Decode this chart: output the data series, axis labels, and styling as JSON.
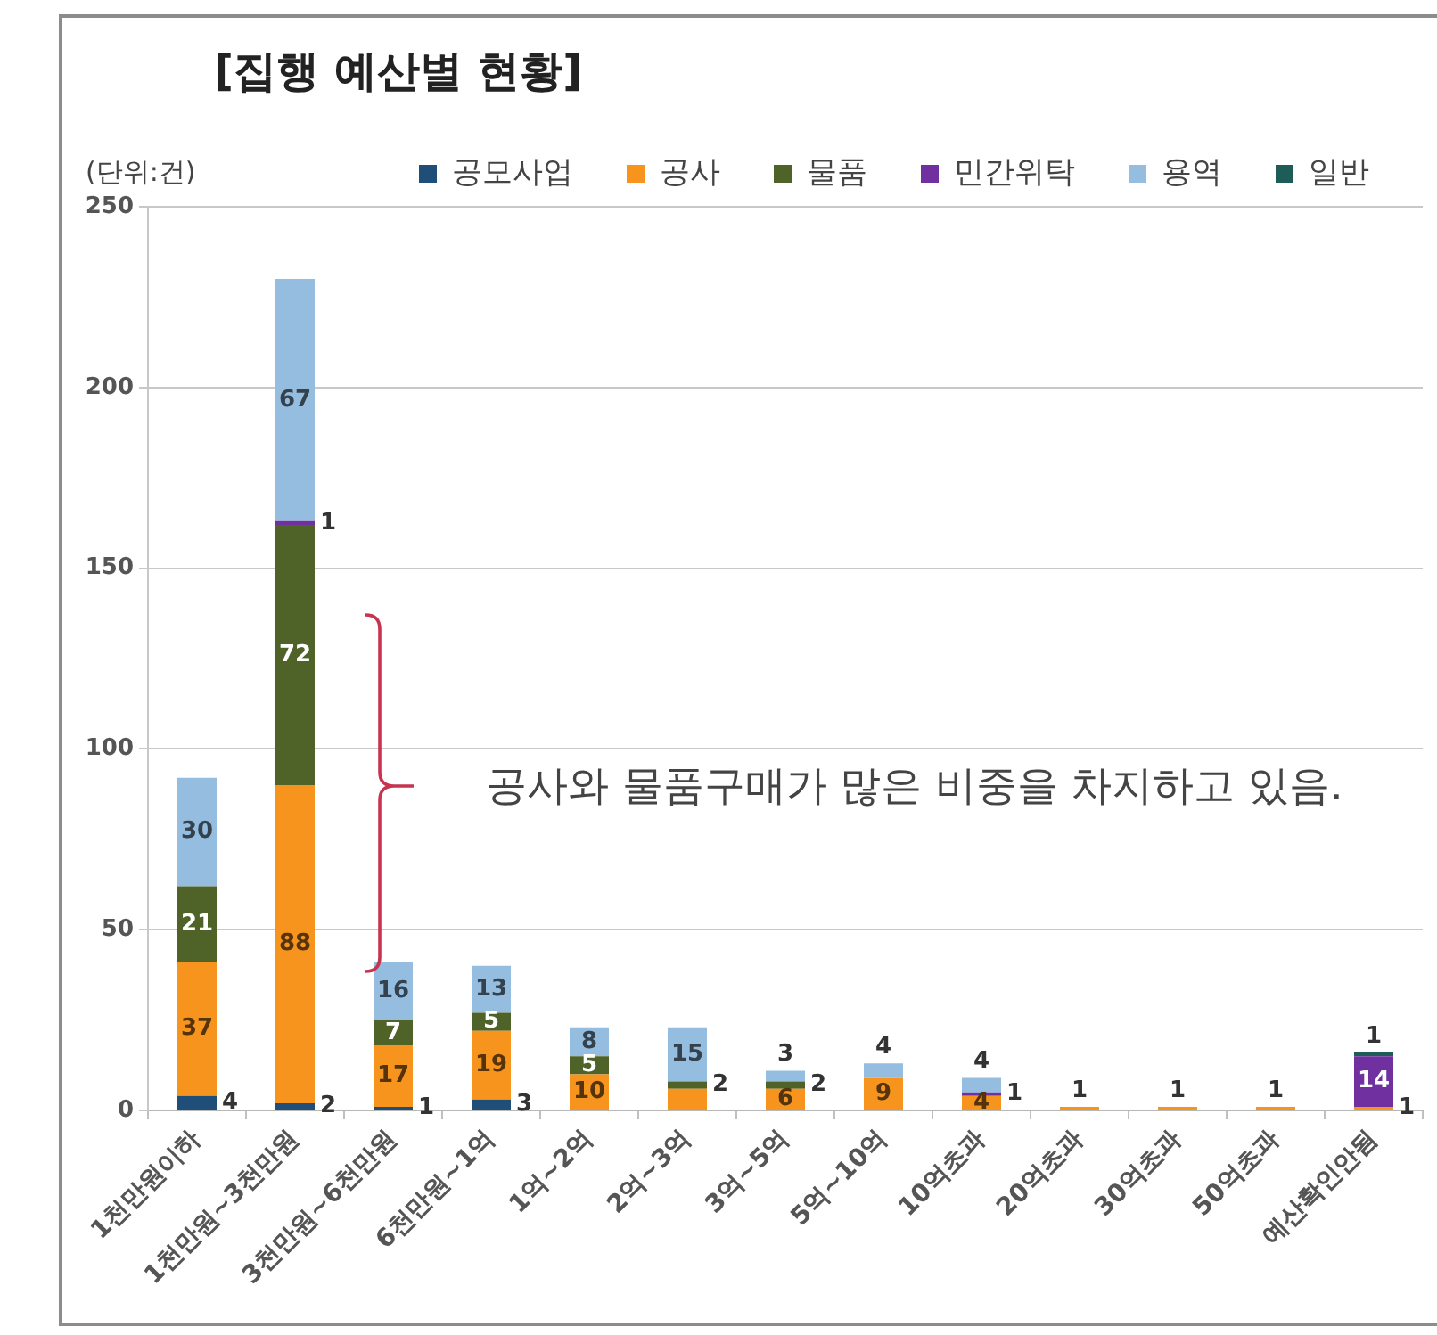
{
  "chart_data": {
    "type": "bar",
    "stacked": true,
    "title": "[집행 예산별 현황]",
    "ylabel": "(단위:건)",
    "categories": [
      "1천만원이하",
      "1천만원~3천만원",
      "3천만원~6천만원",
      "6천만원~1억",
      "1억~2억",
      "2억~3억",
      "3억~5억",
      "5억~10억",
      "10억초과",
      "20억초과",
      "30억초과",
      "50억초과",
      "예산확인안됨"
    ],
    "series": [
      {
        "name": "공모사업",
        "color": "#1f4e79",
        "values": [
          4,
          2,
          1,
          3,
          null,
          null,
          null,
          null,
          null,
          null,
          null,
          null,
          null
        ],
        "value_labels": [
          "4",
          "2",
          "1",
          "3",
          null,
          null,
          null,
          null,
          null,
          null,
          null,
          null,
          null
        ]
      },
      {
        "name": "공사",
        "color": "#f7941e",
        "values": [
          37,
          88,
          17,
          19,
          10,
          6,
          6,
          9,
          4,
          1,
          1,
          1,
          1
        ],
        "value_labels": [
          "37",
          "88",
          "17",
          "19",
          "10",
          null,
          "6",
          "9",
          "4",
          "1",
          "1",
          "1",
          "1"
        ]
      },
      {
        "name": "물품",
        "color": "#4f6228",
        "values": [
          21,
          72,
          7,
          5,
          5,
          2,
          2,
          null,
          null,
          null,
          null,
          null,
          null
        ],
        "value_labels": [
          "21",
          "72",
          "7",
          "5",
          "5",
          "2",
          "2",
          null,
          null,
          null,
          null,
          null,
          null
        ]
      },
      {
        "name": "민간위탁",
        "color": "#7030a0",
        "values": [
          null,
          1,
          null,
          null,
          null,
          null,
          null,
          null,
          1,
          null,
          null,
          null,
          14
        ],
        "value_labels": [
          null,
          "1",
          null,
          null,
          null,
          null,
          null,
          null,
          "1",
          null,
          null,
          null,
          "14"
        ]
      },
      {
        "name": "용역",
        "color": "#95bde0",
        "values": [
          30,
          67,
          16,
          13,
          8,
          15,
          3,
          4,
          4,
          null,
          null,
          null,
          null
        ],
        "value_labels": [
          "30",
          "67",
          "16",
          "13",
          "8",
          "15",
          "3",
          "4",
          "4",
          null,
          null,
          null,
          null
        ]
      },
      {
        "name": "일반",
        "color": "#1e5c58",
        "values": [
          null,
          null,
          null,
          null,
          null,
          null,
          null,
          null,
          null,
          null,
          null,
          null,
          1
        ],
        "value_labels": [
          null,
          null,
          null,
          null,
          null,
          null,
          null,
          null,
          null,
          null,
          null,
          null,
          "1"
        ]
      }
    ],
    "ylim": [
      0,
      250
    ],
    "yticks": [
      0,
      50,
      100,
      150,
      200,
      250
    ],
    "grid": "y",
    "legend": "top right",
    "annotations": [
      "공사와 물품구매가 많은 비중을 차지하고 있음."
    ]
  }
}
